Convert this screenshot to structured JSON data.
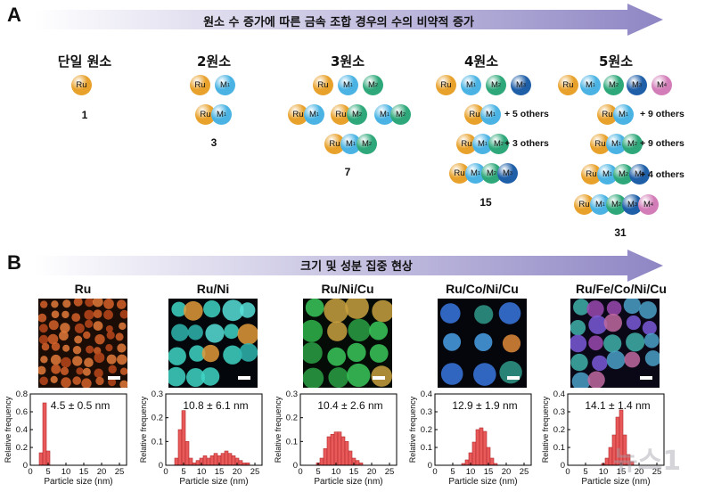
{
  "panel_a": {
    "letter": "A",
    "arrow_text": "원소 수 증가에 따른 금속 조합 경우의 수의 비약적 증가",
    "columns": [
      {
        "title": "단일 원소",
        "count": "1"
      },
      {
        "title": "2원소",
        "count": "3"
      },
      {
        "title": "3원소",
        "count": "7"
      },
      {
        "title": "4원소",
        "count": "15"
      },
      {
        "title": "5원소",
        "count": "31"
      }
    ],
    "elements": {
      "ru": "Ru",
      "m": "M"
    },
    "others": {
      "four_a": "+ 5 others",
      "four_b": "+ 3 others",
      "five_a": "+ 9 others",
      "five_b": "+ 9 others",
      "five_c": "+ 4 others"
    },
    "colors": {
      "ru": "#e8a12b",
      "m1": "#4ab3e3",
      "m2": "#2ea87a",
      "m3": "#1f5fa8",
      "m4": "#d37db8"
    }
  },
  "panel_b": {
    "letter": "B",
    "arrow_text": "크기 및 성분 집중 현상",
    "samples": [
      {
        "title": "Ru",
        "stat": "4.5 ± 0.5 nm"
      },
      {
        "title": "Ru/Ni",
        "stat": "10.8 ± 6.1 nm"
      },
      {
        "title": "Ru/Ni/Cu",
        "stat": "10.4 ± 2.6 nm"
      },
      {
        "title": "Ru/Co/Ni/Cu",
        "stat": "12.9 ± 1.9 nm"
      },
      {
        "title": "Ru/Fe/Co/Ni/Cu",
        "stat": "14.1 ± 1.4 nm"
      }
    ],
    "xlabel": "Particle size (nm)",
    "ylabel": "Relative frequency"
  },
  "chart_data": [
    {
      "type": "bar",
      "title": "Ru",
      "annotation": "4.5 ± 0.5 nm",
      "xlabel": "Particle size (nm)",
      "ylabel": "Relative frequency",
      "xlim": [
        0,
        27
      ],
      "ylim": [
        0,
        0.8
      ],
      "xticks": [
        0,
        5,
        10,
        15,
        20,
        25
      ],
      "yticks": [
        0,
        0.2,
        0.4,
        0.6,
        0.8
      ],
      "bin_width": 1,
      "x": [
        3,
        4,
        5
      ],
      "values": [
        0.14,
        0.7,
        0.16
      ]
    },
    {
      "type": "bar",
      "title": "Ru/Ni",
      "annotation": "10.8 ± 6.1 nm",
      "xlabel": "Particle size (nm)",
      "ylabel": "Relative frequency",
      "xlim": [
        0,
        27
      ],
      "ylim": [
        0,
        0.3
      ],
      "xticks": [
        0,
        5,
        10,
        15,
        20,
        25
      ],
      "yticks": [
        0,
        0.1,
        0.2,
        0.3
      ],
      "bin_width": 1,
      "x": [
        3,
        4,
        5,
        6,
        7,
        8,
        9,
        10,
        11,
        12,
        13,
        14,
        15,
        16,
        17,
        18,
        19,
        20,
        21,
        22,
        23
      ],
      "values": [
        0.03,
        0.15,
        0.23,
        0.1,
        0.03,
        0.01,
        0.02,
        0.03,
        0.04,
        0.03,
        0.04,
        0.05,
        0.04,
        0.05,
        0.06,
        0.05,
        0.04,
        0.03,
        0.02,
        0.01,
        0.01
      ]
    },
    {
      "type": "bar",
      "title": "Ru/Ni/Cu",
      "annotation": "10.4 ± 2.6 nm",
      "xlabel": "Particle size (nm)",
      "ylabel": "Relative frequency",
      "xlim": [
        0,
        27
      ],
      "ylim": [
        0,
        0.3
      ],
      "xticks": [
        0,
        5,
        10,
        15,
        20,
        25
      ],
      "yticks": [
        0,
        0.1,
        0.2,
        0.3
      ],
      "bin_width": 1,
      "x": [
        5,
        6,
        7,
        8,
        9,
        10,
        11,
        12,
        13,
        14,
        15,
        16,
        17
      ],
      "values": [
        0.01,
        0.03,
        0.07,
        0.12,
        0.13,
        0.14,
        0.14,
        0.12,
        0.1,
        0.06,
        0.03,
        0.02,
        0.01
      ]
    },
    {
      "type": "bar",
      "title": "Ru/Co/Ni/Cu",
      "annotation": "12.9 ± 1.9 nm",
      "xlabel": "Particle size (nm)",
      "ylabel": "Relative frequency",
      "xlim": [
        0,
        27
      ],
      "ylim": [
        0,
        0.4
      ],
      "xticks": [
        0,
        5,
        10,
        15,
        20,
        25
      ],
      "yticks": [
        0,
        0.1,
        0.2,
        0.3,
        0.4
      ],
      "bin_width": 1,
      "x": [
        8,
        9,
        10,
        11,
        12,
        13,
        14,
        15,
        16,
        17
      ],
      "values": [
        0.01,
        0.03,
        0.07,
        0.13,
        0.2,
        0.21,
        0.19,
        0.1,
        0.04,
        0.01
      ]
    },
    {
      "type": "bar",
      "title": "Ru/Fe/Co/Ni/Cu",
      "annotation": "14.1 ± 1.4 nm",
      "xlabel": "Particle size (nm)",
      "ylabel": "Relative frequency",
      "xlim": [
        0,
        27
      ],
      "ylim": [
        0,
        0.4
      ],
      "xticks": [
        0,
        5,
        10,
        15,
        20,
        25
      ],
      "yticks": [
        0,
        0.1,
        0.2,
        0.3,
        0.4
      ],
      "bin_width": 1,
      "x": [
        10,
        11,
        12,
        13,
        14,
        15,
        16,
        17,
        18
      ],
      "values": [
        0.01,
        0.04,
        0.1,
        0.17,
        0.27,
        0.31,
        0.17,
        0.06,
        0.02
      ]
    }
  ],
  "watermark": "뉴스1"
}
